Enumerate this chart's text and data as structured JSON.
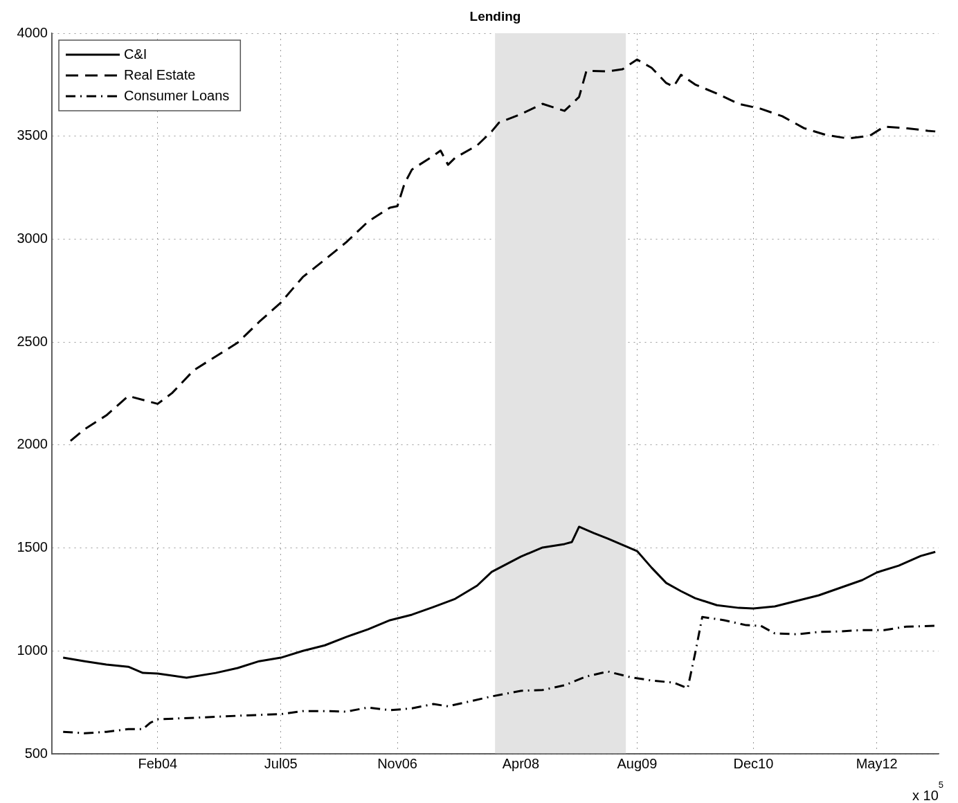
{
  "chart_data": {
    "type": "line",
    "title": "Lending",
    "legend": "top left",
    "grid": true,
    "xlim": [
      "2002-11-15",
      "2013-01-15"
    ],
    "xticks": [
      {
        "value": "2004-02-01",
        "label": "Feb04"
      },
      {
        "value": "2005-07-01",
        "label": "Jul05"
      },
      {
        "value": "2006-11-01",
        "label": "Nov06"
      },
      {
        "value": "2008-04-01",
        "label": "Apr08"
      },
      {
        "value": "2009-08-01",
        "label": "Aug09"
      },
      {
        "value": "2010-12-01",
        "label": "Dec10"
      },
      {
        "value": "2012-05-01",
        "label": "May12"
      }
    ],
    "ylim": [
      500,
      4000
    ],
    "yticks": [
      500,
      1000,
      1500,
      2000,
      2500,
      3000,
      3500,
      4000
    ],
    "bands": [
      {
        "axis": "x",
        "from": "2007-12-15",
        "to": "2009-06-15",
        "color": "#e3e3e3"
      }
    ],
    "annotations": [
      "x 10$^{5}$"
    ],
    "series": [
      {
        "name": "C&I",
        "color": "#000000",
        "line_style": "solid",
        "x": [
          "2003-01",
          "2003-04",
          "2003-07",
          "2003-10",
          "2003-12",
          "2004-02",
          "2004-06",
          "2004-10",
          "2005-01",
          "2005-04",
          "2005-07",
          "2005-10",
          "2006-01",
          "2006-04",
          "2006-07",
          "2006-10",
          "2007-01",
          "2007-04",
          "2007-07",
          "2007-10",
          "2007-12",
          "2008-04",
          "2008-07",
          "2008-10",
          "2008-11",
          "2008-12",
          "2009-02",
          "2009-04",
          "2009-06",
          "2009-08",
          "2009-10",
          "2009-12",
          "2010-02",
          "2010-04",
          "2010-07",
          "2010-10",
          "2010-12",
          "2011-03",
          "2011-06",
          "2011-09",
          "2011-12",
          "2012-03",
          "2012-05",
          "2012-08",
          "2012-11",
          "2013-01"
        ],
        "values": [
          967,
          950,
          934,
          923,
          893,
          890,
          870,
          893,
          917,
          950,
          967,
          1000,
          1027,
          1068,
          1105,
          1149,
          1176,
          1213,
          1253,
          1317,
          1384,
          1458,
          1502,
          1519,
          1529,
          1603,
          1572,
          1545,
          1515,
          1485,
          1404,
          1330,
          1290,
          1256,
          1222,
          1209,
          1206,
          1216,
          1243,
          1270,
          1307,
          1344,
          1381,
          1414,
          1461,
          1481
        ]
      },
      {
        "name": "Real Estate",
        "color": "#000000",
        "line_style": "dashed",
        "x": [
          "2003-02",
          "2003-04",
          "2003-07",
          "2003-10",
          "2004-02",
          "2004-04",
          "2004-07",
          "2004-10",
          "2005-01",
          "2005-04",
          "2005-07",
          "2005-10",
          "2006-01",
          "2006-04",
          "2006-07",
          "2006-10",
          "2006-11",
          "2006-12",
          "2007-01",
          "2007-04",
          "2007-05",
          "2007-06",
          "2007-07",
          "2007-10",
          "2007-12",
          "2008-01",
          "2008-04",
          "2008-07",
          "2008-10",
          "2008-12",
          "2009-01",
          "2009-04",
          "2009-06",
          "2009-08",
          "2009-10",
          "2009-12",
          "2010-01",
          "2010-02",
          "2010-04",
          "2010-07",
          "2010-10",
          "2011-01",
          "2011-04",
          "2011-07",
          "2011-10",
          "2012-01",
          "2012-04",
          "2012-06",
          "2012-09",
          "2012-12",
          "2013-01"
        ],
        "values": [
          2020,
          2077,
          2144,
          2238,
          2200,
          2252,
          2363,
          2430,
          2497,
          2598,
          2692,
          2816,
          2900,
          2985,
          3085,
          3153,
          3160,
          3270,
          3338,
          3405,
          3430,
          3361,
          3395,
          3455,
          3523,
          3566,
          3607,
          3657,
          3623,
          3690,
          3818,
          3815,
          3825,
          3872,
          3832,
          3758,
          3741,
          3798,
          3751,
          3707,
          3657,
          3633,
          3597,
          3539,
          3506,
          3489,
          3502,
          3546,
          3539,
          3526,
          3523
        ]
      },
      {
        "name": "Consumer Loans",
        "color": "#000000",
        "line_style": "dashdot",
        "x": [
          "2003-01",
          "2003-04",
          "2003-07",
          "2003-10",
          "2003-12",
          "2004-01",
          "2004-02",
          "2004-07",
          "2005-01",
          "2005-07",
          "2005-10",
          "2006-01",
          "2006-04",
          "2006-07",
          "2006-10",
          "2007-01",
          "2007-04",
          "2007-06",
          "2007-09",
          "2007-12",
          "2008-04",
          "2008-07",
          "2008-10",
          "2009-01",
          "2009-04",
          "2009-07",
          "2009-10",
          "2010-01",
          "2010-03",
          "2010-04",
          "2010-05",
          "2010-08",
          "2010-11",
          "2011-01",
          "2011-03",
          "2011-06",
          "2011-09",
          "2011-12",
          "2012-03",
          "2012-06",
          "2012-09",
          "2013-01"
        ],
        "values": [
          607,
          600,
          607,
          620,
          620,
          651,
          668,
          675,
          685,
          693,
          708,
          708,
          705,
          725,
          712,
          721,
          742,
          731,
          755,
          779,
          806,
          810,
          833,
          876,
          900,
          873,
          856,
          846,
          819,
          987,
          1165,
          1149,
          1125,
          1122,
          1085,
          1081,
          1092,
          1095,
          1101,
          1101,
          1118,
          1122
        ]
      }
    ]
  }
}
